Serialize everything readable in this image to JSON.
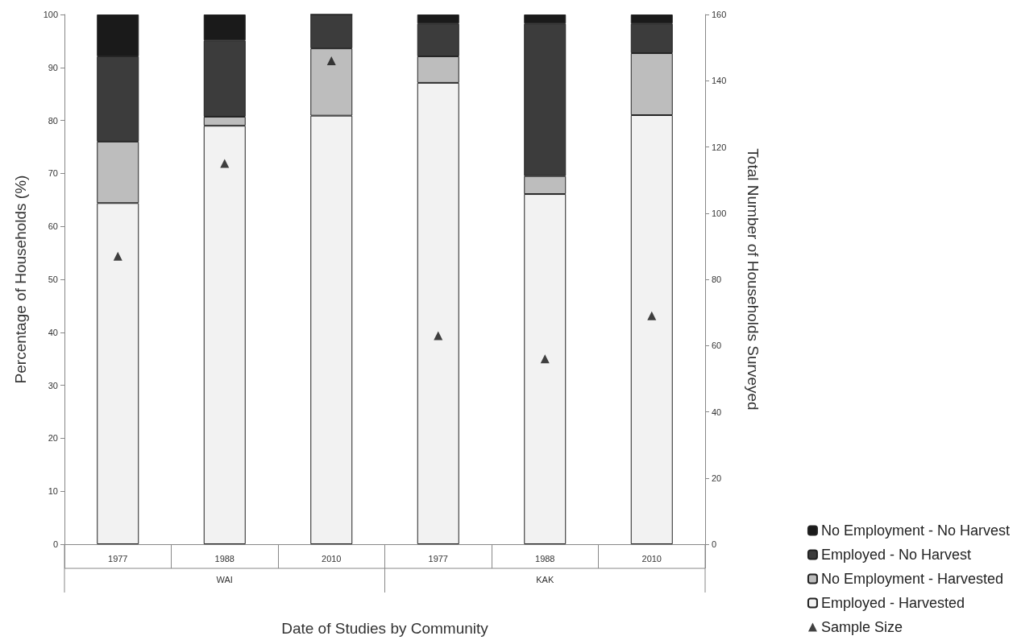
{
  "chart_data": {
    "type": "bar",
    "stacked": true,
    "xlabel": "Date of Studies by Community",
    "ylabel": "Percentage of Households (%)",
    "y2label": "Total Number of Households Surveyed",
    "categories": [
      "1977",
      "1988",
      "2010",
      "1977",
      "1988",
      "2010"
    ],
    "annotations": [
      "WAI",
      "KAK"
    ],
    "series": [
      {
        "name": "Employed - Harvested",
        "color": "#f2f2f2",
        "values": [
          64.4,
          79.0,
          80.9,
          87.1,
          66.1,
          81.0
        ]
      },
      {
        "name": "No Employment - Harvested",
        "color": "#bdbdbd",
        "values": [
          11.6,
          1.7,
          12.7,
          5.0,
          3.4,
          11.7
        ]
      },
      {
        "name": "Employed - No Harvest",
        "color": "#3c3c3c",
        "values": [
          16.1,
          14.4,
          6.4,
          6.2,
          28.8,
          5.6
        ]
      },
      {
        "name": "No Employment - No Harvest",
        "color": "#1a1a1a",
        "values": [
          7.9,
          4.9,
          0,
          1.7,
          1.7,
          1.7
        ]
      },
      {
        "name": "Sample Size",
        "type": "scatter",
        "axis": "y2",
        "marker": "triangle",
        "color": "#111111",
        "values": [
          87,
          115,
          146,
          63,
          56,
          69
        ]
      }
    ],
    "ylim": [
      0,
      100
    ],
    "yticks": [
      0,
      10,
      20,
      30,
      40,
      50,
      60,
      70,
      80,
      90,
      100
    ],
    "y2lim": [
      0,
      160
    ],
    "y2ticks": [
      0,
      20,
      40,
      60,
      80,
      100,
      120,
      140,
      160
    ],
    "grid": false,
    "legend": "bottom right"
  }
}
